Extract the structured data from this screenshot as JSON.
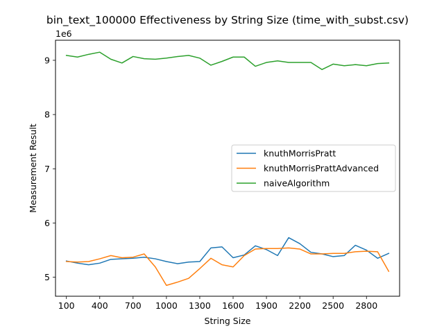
{
  "chart_data": {
    "type": "line",
    "title": "bin_text_100000 Effectiveness by String Size (time_with_subst.csv)",
    "xlabel": "String Size",
    "ylabel": "Measurement Result",
    "y_offset_label": "1e6",
    "xlim": [
      2,
      3098
    ],
    "ylim": [
      4.65,
      9.37
    ],
    "xticks": [
      100,
      400,
      700,
      1000,
      1300,
      1600,
      1900,
      2200,
      2500,
      2800
    ],
    "yticks": [
      5,
      6,
      7,
      8,
      9
    ],
    "grid": false,
    "legend_position": "center-right",
    "x": [
      100,
      200,
      300,
      400,
      500,
      600,
      700,
      800,
      900,
      1000,
      1100,
      1200,
      1300,
      1400,
      1500,
      1600,
      1700,
      1800,
      1900,
      2000,
      2100,
      2200,
      2300,
      2400,
      2500,
      2600,
      2700,
      2800,
      2900,
      3000
    ],
    "series": [
      {
        "name": "knuthMorrisPratt",
        "color": "#1f77b4",
        "values": [
          5.3,
          5.26,
          5.23,
          5.26,
          5.33,
          5.34,
          5.35,
          5.37,
          5.34,
          5.29,
          5.25,
          5.28,
          5.29,
          5.54,
          5.56,
          5.36,
          5.41,
          5.58,
          5.51,
          5.4,
          5.73,
          5.62,
          5.46,
          5.43,
          5.38,
          5.4,
          5.59,
          5.5,
          5.35,
          5.44
        ]
      },
      {
        "name": "knuthMorrisPrattAdvanced",
        "color": "#ff7f0e",
        "values": [
          5.29,
          5.28,
          5.29,
          5.34,
          5.4,
          5.36,
          5.37,
          5.43,
          5.19,
          4.85,
          4.91,
          4.98,
          5.16,
          5.35,
          5.23,
          5.19,
          5.4,
          5.52,
          5.53,
          5.53,
          5.54,
          5.52,
          5.43,
          5.43,
          5.44,
          5.44,
          5.47,
          5.48,
          5.47,
          5.11
        ]
      },
      {
        "name": "naiveAlgorithm",
        "color": "#2ca02c",
        "values": [
          9.09,
          9.06,
          9.11,
          9.15,
          9.02,
          8.95,
          9.07,
          9.03,
          9.02,
          9.04,
          9.07,
          9.09,
          9.04,
          8.91,
          8.98,
          9.06,
          9.06,
          8.89,
          8.96,
          8.99,
          8.96,
          8.96,
          8.96,
          8.83,
          8.93,
          8.9,
          8.92,
          8.9,
          8.94,
          8.95
        ]
      }
    ]
  }
}
